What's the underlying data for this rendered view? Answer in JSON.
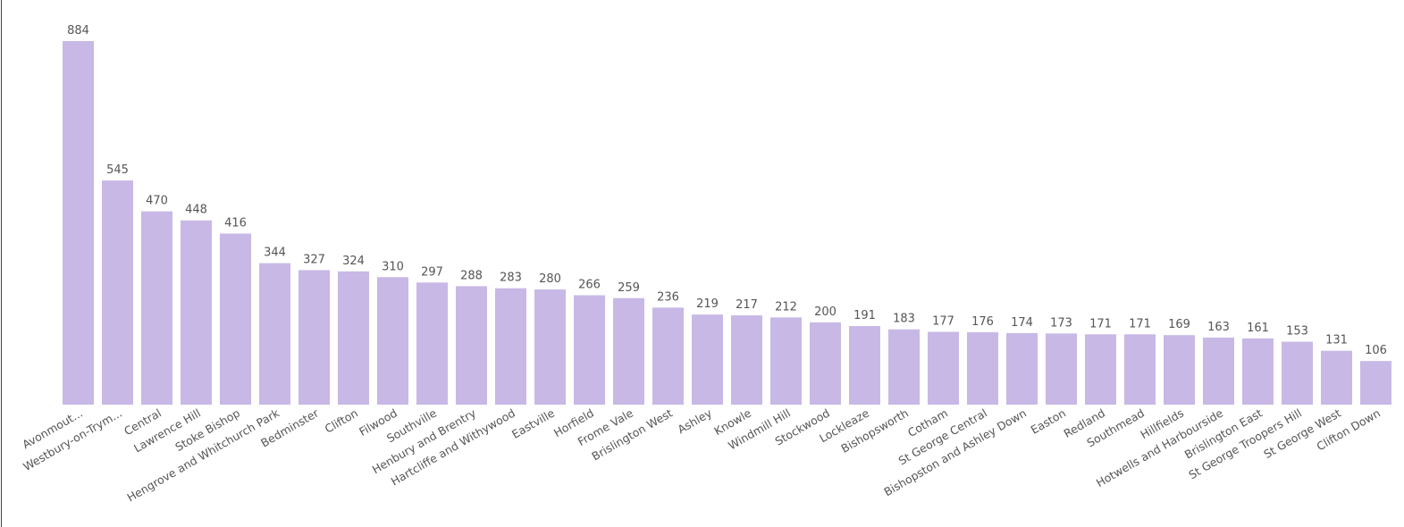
{
  "chart_data": {
    "type": "bar",
    "title": "",
    "xlabel": "",
    "ylabel": "",
    "ylim": [
      0,
      884
    ],
    "bar_color": "#c8b8e6",
    "label_color": "#555555",
    "categories": [
      "Avonmout...",
      "Westbury-on-Trym...",
      "Central",
      "Lawrence Hill",
      "Stoke Bishop",
      "Hengrove and Whitchurch Park",
      "Bedminster",
      "Clifton",
      "Filwood",
      "Southville",
      "Henbury and Brentry",
      "Hartcliffe and Withywood",
      "Eastville",
      "Horfield",
      "Frome Vale",
      "Brislington West",
      "Ashley",
      "Knowle",
      "Windmill Hill",
      "Stockwood",
      "Lockleaze",
      "Bishopsworth",
      "Cotham",
      "St George Central",
      "Bishopston and Ashley Down",
      "Easton",
      "Redland",
      "Southmead",
      "Hillfields",
      "Hotwells and Harbourside",
      "Brislington East",
      "St George Troopers Hill",
      "St George West",
      "Clifton Down"
    ],
    "values": [
      884,
      545,
      470,
      448,
      416,
      344,
      327,
      324,
      310,
      297,
      288,
      283,
      280,
      266,
      259,
      236,
      219,
      217,
      212,
      200,
      191,
      183,
      177,
      176,
      174,
      173,
      171,
      171,
      169,
      163,
      161,
      153,
      131,
      106
    ]
  }
}
